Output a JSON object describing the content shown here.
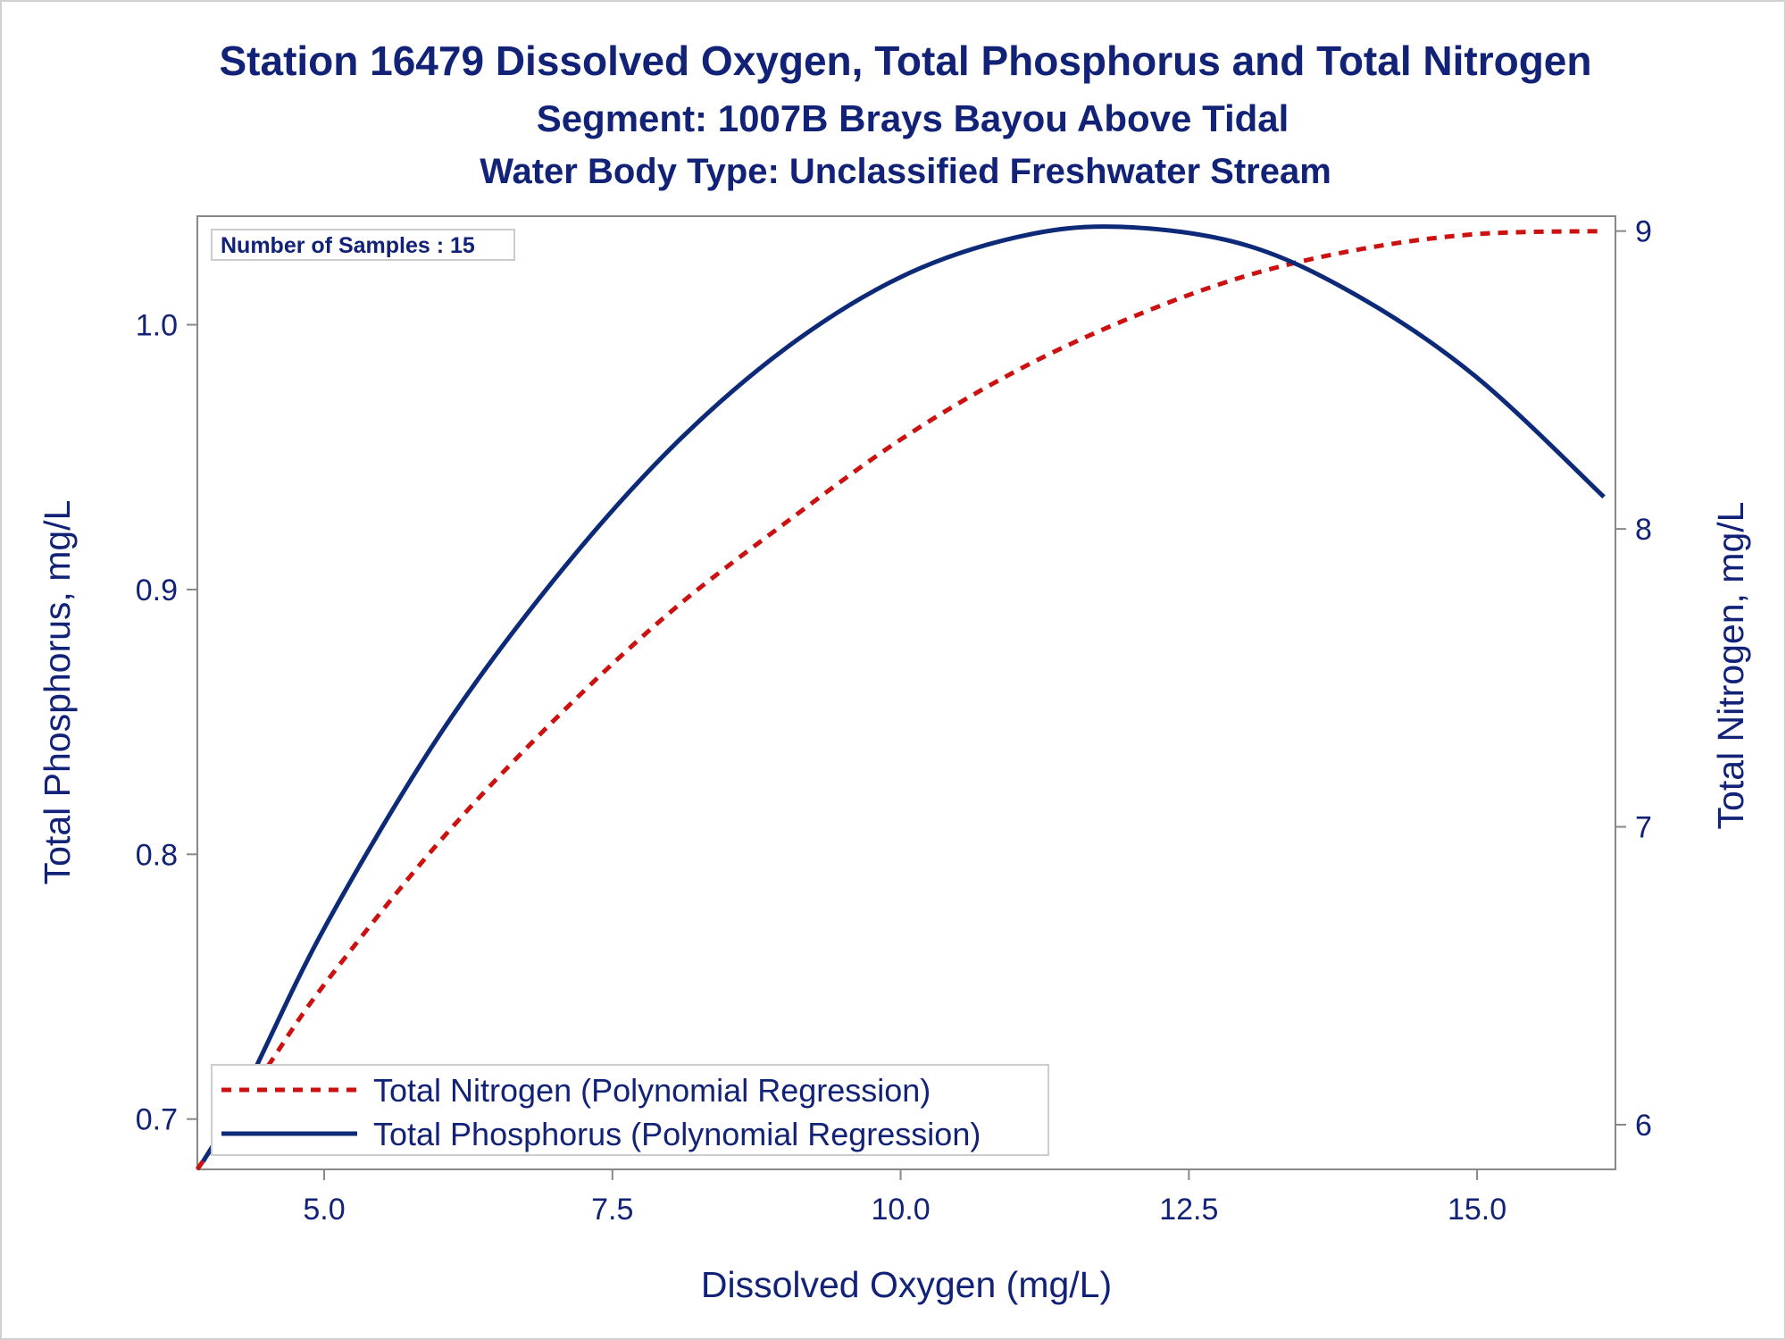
{
  "titles": [
    "Station 16479  Dissolved Oxygen, Total Phosphorus and Total Nitrogen",
    "Segment: 1007B  Brays Bayou Above Tidal",
    "Water Body Type: Unclassified Freshwater Stream"
  ],
  "inset_label": "Number of Samples : 15",
  "colors": {
    "title": "#112277",
    "phosphorus": "#0d2a78",
    "nitrogen": "#cc1111",
    "frame": "#888888"
  },
  "chart_data": {
    "type": "line",
    "xlabel": "Dissolved Oxygen (mg/L)",
    "ylabel_left": "Total Phosphorus, mg/L",
    "ylabel_right": "Total Nitrogen, mg/L",
    "xlim": [
      3.9,
      16.2
    ],
    "ylim_left": [
      0.681,
      1.041
    ],
    "ylim_right": [
      5.85,
      9.05
    ],
    "x_ticks": [
      "5.0",
      "7.5",
      "10.0",
      "12.5",
      "15.0"
    ],
    "y_left_ticks": [
      "0.7",
      "0.8",
      "0.9",
      "1.0"
    ],
    "y_right_ticks": [
      "6",
      "7",
      "8",
      "9"
    ],
    "grid": false,
    "legend_position": "bottom-left",
    "series": [
      {
        "name": "Total Nitrogen (Polynomial Regression)",
        "axis": "right",
        "style": "dashed",
        "x": [
          3.9,
          4.5,
          5.0,
          6.0,
          7.0,
          8.0,
          9.0,
          10.0,
          11.0,
          12.0,
          13.0,
          14.0,
          15.0,
          16.1
        ],
        "y": [
          5.85,
          6.19,
          6.47,
          6.95,
          7.36,
          7.72,
          8.02,
          8.3,
          8.53,
          8.71,
          8.85,
          8.94,
          8.99,
          9.0
        ]
      },
      {
        "name": "Total Phosphorus (Polynomial Regression)",
        "axis": "left",
        "style": "solid",
        "x": [
          3.95,
          4.3,
          5.0,
          6.0,
          7.0,
          8.0,
          9.0,
          10.0,
          11.0,
          11.9,
          13.0,
          14.0,
          15.0,
          16.1
        ],
        "y": [
          0.684,
          0.71,
          0.772,
          0.845,
          0.904,
          0.953,
          0.991,
          1.018,
          1.033,
          1.037,
          1.03,
          1.01,
          0.98,
          0.935
        ]
      }
    ]
  }
}
